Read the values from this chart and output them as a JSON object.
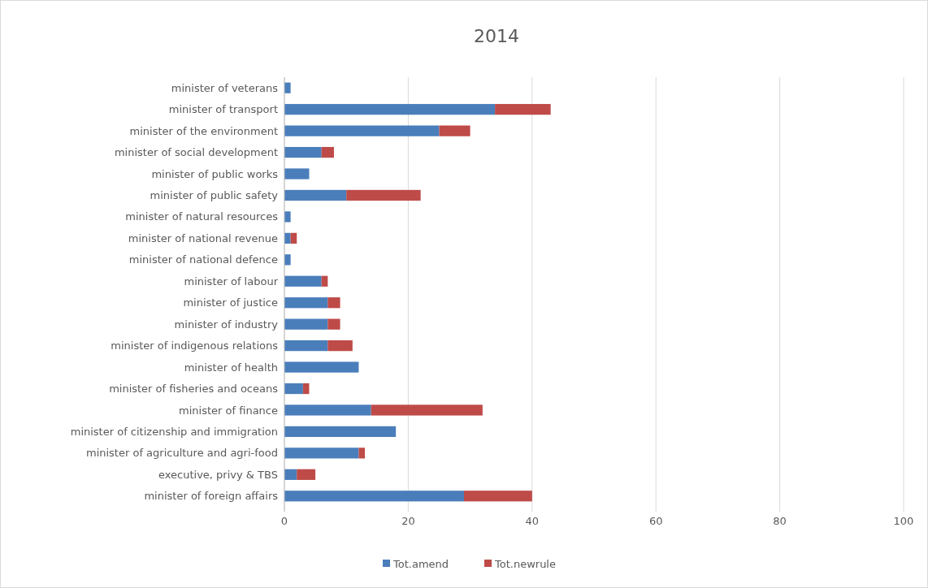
{
  "chart_data": {
    "type": "bar",
    "orientation": "horizontal",
    "stacked": true,
    "title": "2014",
    "categories": [
      "minister of veterans",
      "minister of transport",
      "minister of the environment",
      "minister of social development",
      "minister of public works",
      "minister of public safety",
      "minister of natural resources",
      "minister of national revenue",
      "minister of national defence",
      "minister of labour",
      "minister of justice",
      "minister of industry",
      "minister of indigenous relations",
      "minister of health",
      "minister of fisheries and oceans",
      "minister of finance",
      "minister of citizenship and immigration",
      "minister of agriculture and agri-food",
      "executive, privy & TBS",
      "minister of foreign affairs"
    ],
    "series": [
      {
        "name": "Tot.amend",
        "color": "#4a7ebb",
        "values": [
          1,
          34,
          25,
          6,
          4,
          10,
          1,
          1,
          1,
          6,
          7,
          7,
          7,
          12,
          3,
          14,
          18,
          12,
          2,
          29
        ]
      },
      {
        "name": "Tot.newrule",
        "color": "#be4b48",
        "values": [
          0,
          9,
          5,
          2,
          0,
          12,
          0,
          1,
          0,
          1,
          2,
          2,
          4,
          0,
          1,
          18,
          0,
          1,
          3,
          11
        ]
      }
    ],
    "xlim": [
      0,
      100
    ],
    "xticks": [
      0,
      20,
      40,
      60,
      80,
      100
    ],
    "grid": "x",
    "legend": "bottom"
  }
}
